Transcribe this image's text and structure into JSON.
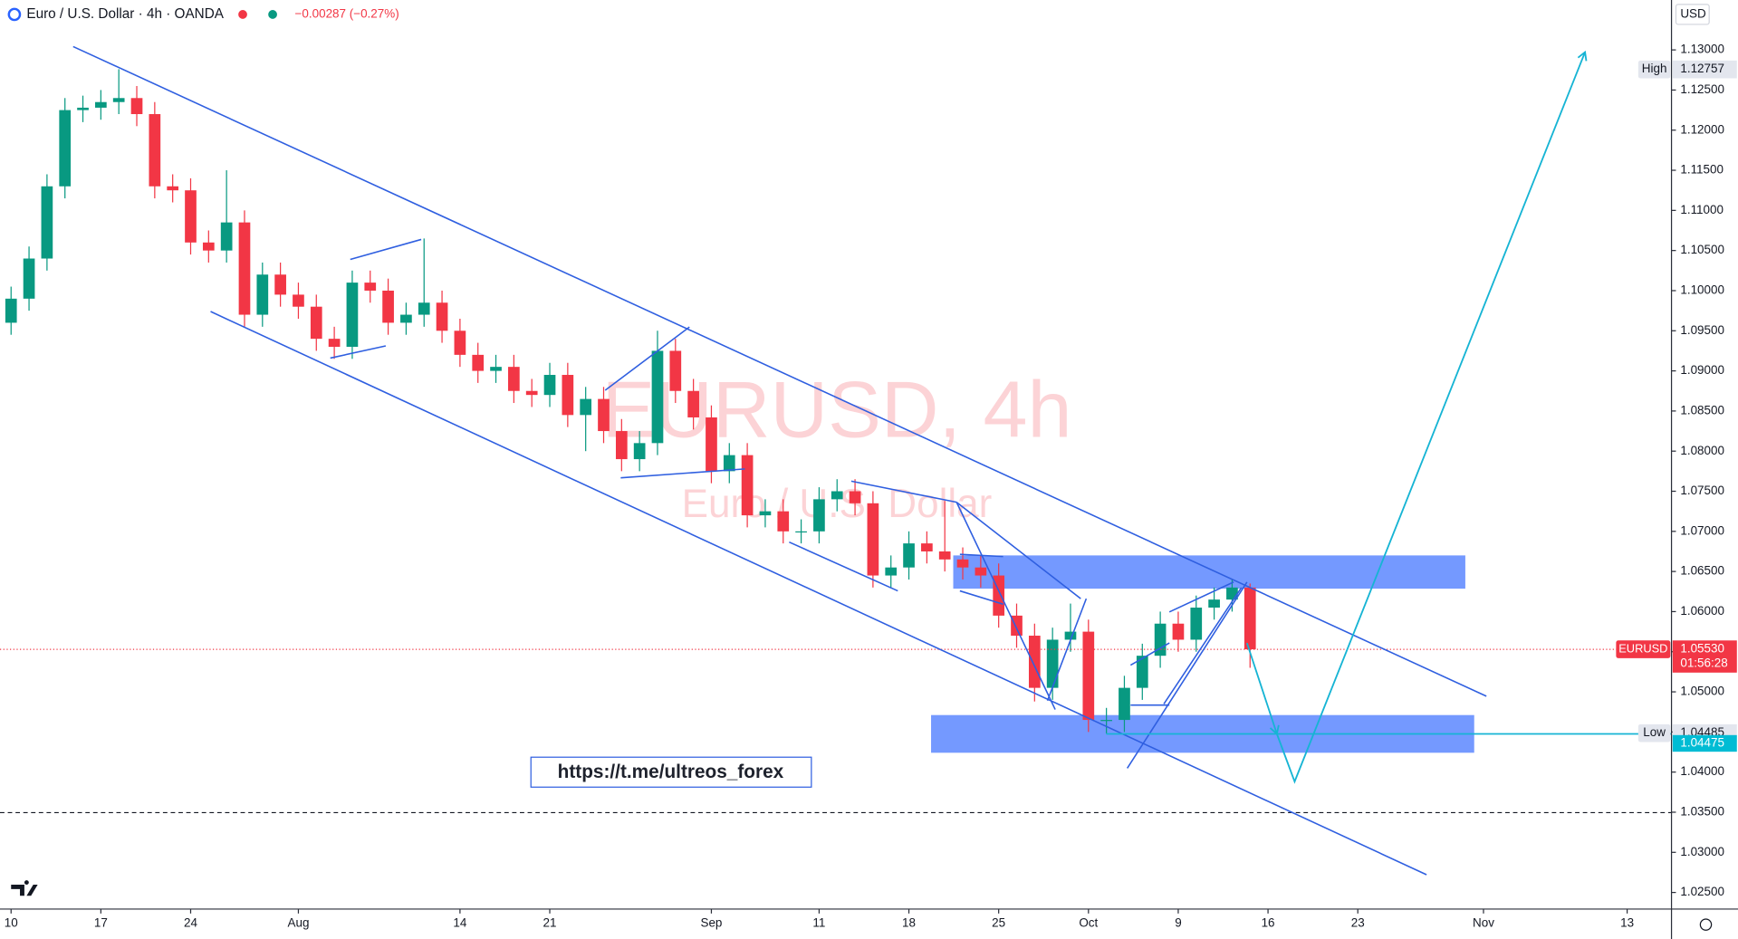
{
  "header": {
    "symbol": "Euro / U.S. Dollar · 4h · OANDA",
    "change": "−0.00287 (−0.27%)",
    "currency": "USD"
  },
  "watermark": {
    "symbol": "EURUSD, 4h",
    "description": "Euro / U.S. Dollar"
  },
  "link": "https://t.me/ultreos_forex",
  "chart_data": {
    "type": "candlestick",
    "open": [
      1.096,
      1.099,
      1.104,
      1.113,
      1.1225,
      1.1228,
      1.1235,
      1.124,
      1.122,
      1.113,
      1.1125,
      1.106,
      1.105,
      1.1085,
      1.097,
      1.102,
      1.0995,
      1.098,
      1.094,
      1.093,
      1.101,
      1.1,
      1.096,
      1.097,
      1.0985,
      1.095,
      1.092,
      1.09,
      1.0905,
      1.0875,
      1.087,
      1.0895,
      1.0845,
      1.0865,
      1.0825,
      1.079,
      1.081,
      1.0925,
      1.0875,
      1.0842,
      1.0775,
      1.0795,
      1.072,
      1.0725,
      1.07,
      1.07,
      1.074,
      1.075,
      1.0735,
      1.0645,
      1.0655,
      1.0685,
      1.0675,
      1.0665,
      1.0655,
      1.0645,
      1.0595,
      1.057,
      1.0505,
      1.0565,
      1.0575,
      1.0465,
      1.0465,
      1.0505,
      1.0545,
      1.0585,
      1.0565,
      1.0605,
      1.0615,
      1.063
    ],
    "high": [
      1.1005,
      1.1055,
      1.1145,
      1.124,
      1.1243,
      1.125,
      1.1276,
      1.1255,
      1.1235,
      1.1145,
      1.114,
      1.1075,
      1.115,
      1.11,
      1.1035,
      1.1035,
      1.101,
      1.0995,
      1.0955,
      1.1025,
      1.1025,
      1.1015,
      1.0985,
      1.1065,
      1.1,
      1.0965,
      1.0935,
      1.092,
      1.092,
      1.089,
      1.091,
      1.091,
      1.088,
      1.088,
      1.084,
      1.0825,
      1.095,
      1.094,
      1.089,
      1.0857,
      1.081,
      1.081,
      1.074,
      1.074,
      1.0715,
      1.0755,
      1.0765,
      1.0765,
      1.075,
      1.067,
      1.07,
      1.07,
      1.0738,
      1.068,
      1.067,
      1.066,
      1.061,
      1.0585,
      1.058,
      1.061,
      1.059,
      1.048,
      1.052,
      1.056,
      1.06,
      1.06,
      1.062,
      1.063,
      1.064,
      1.0635
    ],
    "low": [
      1.0945,
      1.0975,
      1.1025,
      1.1115,
      1.121,
      1.1213,
      1.122,
      1.1205,
      1.1115,
      1.111,
      1.1045,
      1.1035,
      1.1035,
      1.0955,
      1.0955,
      1.098,
      1.0965,
      1.0925,
      1.0915,
      1.0915,
      1.0985,
      1.0945,
      1.0945,
      1.0955,
      1.0935,
      1.0905,
      1.0885,
      1.0885,
      1.086,
      1.0855,
      1.0855,
      1.083,
      1.08,
      1.081,
      1.0775,
      1.0775,
      1.0795,
      1.086,
      1.0827,
      1.076,
      1.076,
      1.0705,
      1.0705,
      1.0685,
      1.0685,
      1.0685,
      1.0725,
      1.072,
      1.063,
      1.063,
      1.064,
      1.066,
      1.065,
      1.064,
      1.063,
      1.058,
      1.0555,
      1.0488,
      1.049,
      1.055,
      1.045,
      1.0448,
      1.045,
      1.049,
      1.053,
      1.055,
      1.055,
      1.059,
      1.06,
      1.053
    ],
    "close": [
      1.099,
      1.104,
      1.113,
      1.1225,
      1.1228,
      1.1235,
      1.124,
      1.122,
      1.113,
      1.1125,
      1.106,
      1.105,
      1.1085,
      1.097,
      1.102,
      1.0995,
      1.098,
      1.094,
      1.093,
      1.101,
      1.1,
      1.096,
      1.097,
      1.0985,
      1.095,
      1.092,
      1.09,
      1.0905,
      1.0875,
      1.087,
      1.0895,
      1.0845,
      1.0865,
      1.0825,
      1.079,
      1.081,
      1.0925,
      1.0875,
      1.0842,
      1.0775,
      1.0795,
      1.072,
      1.0725,
      1.07,
      1.07,
      1.074,
      1.075,
      1.0735,
      1.0645,
      1.0655,
      1.0685,
      1.0675,
      1.0665,
      1.0655,
      1.0645,
      1.0595,
      1.057,
      1.0505,
      1.0565,
      1.0575,
      1.0465,
      1.0465,
      1.0505,
      1.0545,
      1.0585,
      1.0565,
      1.0605,
      1.0615,
      1.063,
      1.0553
    ],
    "up_color": "#089981",
    "down_color": "#f23645",
    "xlim": [
      -0.617,
      92.47
    ],
    "xticks": [
      {
        "value": 0,
        "label": "10"
      },
      {
        "value": 5,
        "label": "17"
      },
      {
        "value": 10,
        "label": "24"
      },
      {
        "value": 16,
        "label": "Aug"
      },
      {
        "value": 25,
        "label": "14"
      },
      {
        "value": 30,
        "label": "21"
      },
      {
        "value": 39,
        "label": "Sep"
      },
      {
        "value": 45,
        "label": "11"
      },
      {
        "value": 50,
        "label": "18"
      },
      {
        "value": 55,
        "label": "25"
      },
      {
        "value": 60,
        "label": "Oct"
      },
      {
        "value": 65,
        "label": "9"
      },
      {
        "value": 70,
        "label": "16"
      },
      {
        "value": 75,
        "label": "23"
      },
      {
        "value": 82,
        "label": "Nov"
      },
      {
        "value": 90,
        "label": "13"
      }
    ],
    "ylim": [
      1.02293,
      1.13622
    ],
    "yticks": [
      {
        "value": 1.025,
        "label": "1.02500"
      },
      {
        "value": 1.03,
        "label": "1.03000"
      },
      {
        "value": 1.035,
        "label": "1.03500"
      },
      {
        "value": 1.04,
        "label": "1.04000"
      },
      {
        "value": 1.045,
        "label": "1.04500"
      },
      {
        "value": 1.05,
        "label": "1.05000"
      },
      {
        "value": 1.055,
        "label": "1.05500"
      },
      {
        "value": 1.06,
        "label": "1.06000"
      },
      {
        "value": 1.065,
        "label": "1.06500"
      },
      {
        "value": 1.07,
        "label": "1.07000"
      },
      {
        "value": 1.075,
        "label": "1.07500"
      },
      {
        "value": 1.08,
        "label": "1.08000"
      },
      {
        "value": 1.085,
        "label": "1.08500"
      },
      {
        "value": 1.09,
        "label": "1.09000"
      },
      {
        "value": 1.095,
        "label": "1.09500"
      },
      {
        "value": 1.1,
        "label": "1.10000"
      },
      {
        "value": 1.105,
        "label": "1.10500"
      },
      {
        "value": 1.11,
        "label": "1.11000"
      },
      {
        "value": 1.115,
        "label": "1.11500"
      },
      {
        "value": 1.12,
        "label": "1.12000"
      },
      {
        "value": 1.125,
        "label": "1.12500"
      },
      {
        "value": 1.13,
        "label": "1.13000"
      }
    ],
    "price_lines": [
      {
        "tag": "High",
        "value": 1.12757,
        "label": "1.12757",
        "color": "#e3e6ee"
      },
      {
        "tag": "Low",
        "value": 1.04485,
        "label": "1.04485",
        "color": "#e3e6ee"
      }
    ],
    "marker": {
      "value": 1.04475,
      "label": "1.04475",
      "color": "#00bcd4"
    },
    "last_price": {
      "name": "EURUSD",
      "value": 1.0553,
      "label": "1.05530",
      "countdown": "01:56:28",
      "color": "#f23645"
    }
  }
}
